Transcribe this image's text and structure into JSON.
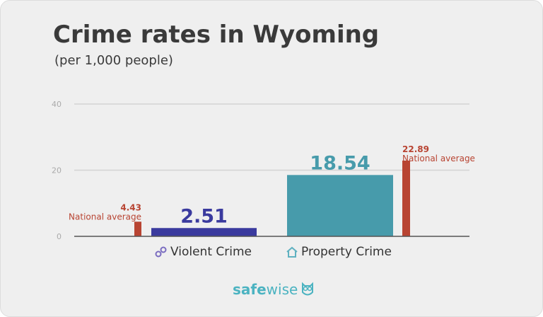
{
  "chart_data": {
    "type": "bar",
    "title": "Crime rates in Wyoming",
    "subtitle": "(per 1,000 people)",
    "ylim": [
      0,
      40
    ],
    "yticks": [
      0,
      20,
      40
    ],
    "grid": true,
    "categories": [
      "Violent Crime",
      "Property Crime"
    ],
    "series": [
      {
        "name": "Wyoming",
        "values": [
          2.51,
          18.54
        ],
        "labels": [
          "2.51",
          "18.54"
        ],
        "colors": [
          "#3a3a9e",
          "#479bab"
        ]
      },
      {
        "name": "National average",
        "values": [
          4.43,
          22.89
        ],
        "labels": [
          "4.43",
          "22.89"
        ],
        "color": "#b84432"
      }
    ],
    "national_label": "National average"
  },
  "icons": {
    "violent": "handcuffs-icon",
    "property": "house-icon",
    "logo": "owl-icon"
  },
  "brand": {
    "safe": "safe",
    "wise": "wise"
  }
}
